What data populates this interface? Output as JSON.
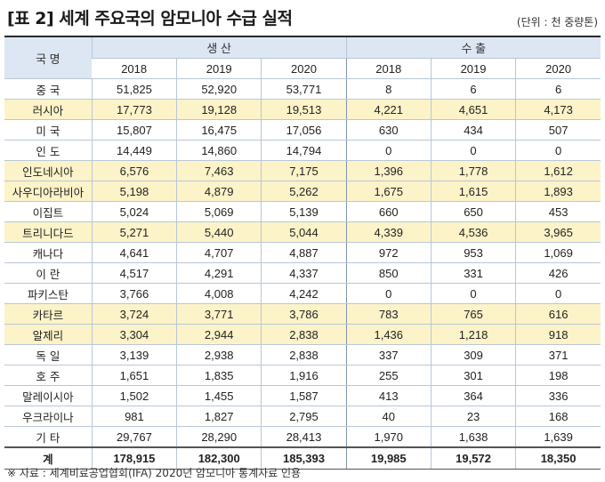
{
  "title": "[표 2] 세계 주요국의 암모니아 수급 실적",
  "unit": "(단위 :  천 중량톤)",
  "header": {
    "country": "국 명",
    "production": "생    산",
    "export": "수    출",
    "years": [
      "2018",
      "2019",
      "2020",
      "2018",
      "2019",
      "2020"
    ]
  },
  "rows": [
    {
      "name": "중 국",
      "highlight": false,
      "values": [
        "51,825",
        "52,920",
        "53,771",
        "8",
        "6",
        "6"
      ]
    },
    {
      "name": "러시아",
      "highlight": true,
      "values": [
        "17,773",
        "19,128",
        "19,513",
        "4,221",
        "4,651",
        "4,173"
      ]
    },
    {
      "name": "미 국",
      "highlight": false,
      "values": [
        "15,807",
        "16,475",
        "17,056",
        "630",
        "434",
        "507"
      ]
    },
    {
      "name": "인 도",
      "highlight": false,
      "values": [
        "14,449",
        "14,860",
        "14,794",
        "0",
        "0",
        "0"
      ]
    },
    {
      "name": "인도네시아",
      "highlight": true,
      "values": [
        "6,576",
        "7,463",
        "7,175",
        "1,396",
        "1,778",
        "1,612"
      ]
    },
    {
      "name": "사우디아라비아",
      "highlight": true,
      "values": [
        "5,198",
        "4,879",
        "5,262",
        "1,675",
        "1,615",
        "1,893"
      ]
    },
    {
      "name": "이집트",
      "highlight": false,
      "values": [
        "5,024",
        "5,069",
        "5,139",
        "660",
        "650",
        "453"
      ]
    },
    {
      "name": "트리니다드",
      "highlight": true,
      "values": [
        "5,271",
        "5,440",
        "5,044",
        "4,339",
        "4,536",
        "3,965"
      ]
    },
    {
      "name": "캐나다",
      "highlight": false,
      "values": [
        "4,641",
        "4,707",
        "4,887",
        "972",
        "953",
        "1,069"
      ]
    },
    {
      "name": "이 란",
      "highlight": false,
      "values": [
        "4,517",
        "4,291",
        "4,337",
        "850",
        "331",
        "426"
      ]
    },
    {
      "name": "파키스탄",
      "highlight": false,
      "values": [
        "3,766",
        "4,008",
        "4,242",
        "0",
        "0",
        "0"
      ]
    },
    {
      "name": "카타르",
      "highlight": true,
      "values": [
        "3,724",
        "3,771",
        "3,786",
        "783",
        "765",
        "616"
      ]
    },
    {
      "name": "알제리",
      "highlight": true,
      "values": [
        "3,304",
        "2,944",
        "2,838",
        "1,436",
        "1,218",
        "918"
      ]
    },
    {
      "name": "독 일",
      "highlight": false,
      "values": [
        "3,139",
        "2,938",
        "2,838",
        "337",
        "309",
        "371"
      ]
    },
    {
      "name": "호 주",
      "highlight": false,
      "values": [
        "1,651",
        "1,835",
        "1,916",
        "255",
        "301",
        "198"
      ]
    },
    {
      "name": "말레이시아",
      "highlight": false,
      "values": [
        "1,502",
        "1,455",
        "1,587",
        "413",
        "364",
        "336"
      ]
    },
    {
      "name": "우크라이나",
      "highlight": false,
      "values": [
        "981",
        "1,827",
        "2,795",
        "40",
        "23",
        "168"
      ]
    },
    {
      "name": "기 타",
      "highlight": false,
      "values": [
        "29,767",
        "28,290",
        "28,413",
        "1,970",
        "1,638",
        "1,639"
      ]
    }
  ],
  "total": {
    "name": "계",
    "values": [
      "178,915",
      "182,300",
      "185,393",
      "19,985",
      "19,572",
      "18,350"
    ]
  },
  "colors": {
    "header_bg": "#dde6f3",
    "highlight_bg": "#fdf3c9"
  },
  "note": "※ 자료 : 세계비료공업협회(IFA) 2020년 암모니아 통계자료 인용"
}
